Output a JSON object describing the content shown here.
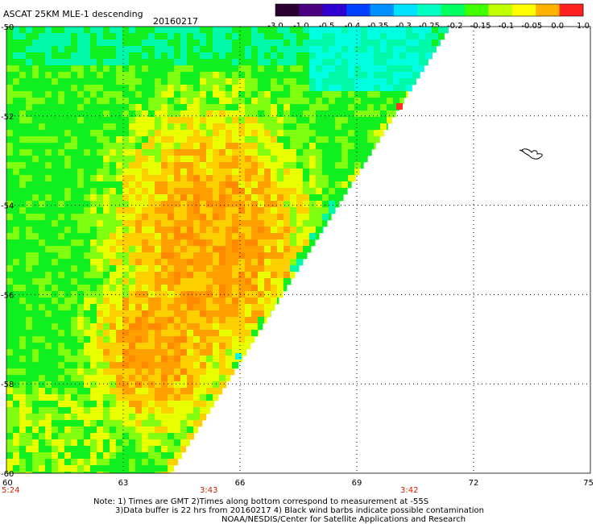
{
  "header": {
    "title": "ASCAT 25KM MLE-1 descending",
    "date": "20160217"
  },
  "colorbar": {
    "tick_labels": [
      "-3.0",
      "-1.0",
      "-0.5",
      "-0.4",
      "-0.35",
      "-0.3",
      "-0.25",
      "-0.2",
      "-0.15",
      "-0.1",
      "-0.05",
      "0.0",
      "1.0"
    ],
    "colors": [
      "#2a0030",
      "#4a0080",
      "#3000d0",
      "#0040ff",
      "#0090ff",
      "#00e0ff",
      "#00ffc0",
      "#00ff60",
      "#40ff00",
      "#c0ff00",
      "#ffff00",
      "#ffb000",
      "#ff2020"
    ]
  },
  "map": {
    "lon_ticks": [
      "60",
      "63",
      "66",
      "69",
      "72",
      "75"
    ],
    "lat_ticks": [
      "-50",
      "-52",
      "-54",
      "-56",
      "-58",
      "-60"
    ],
    "time_labels": [
      "5:24",
      "3:43",
      "3:42"
    ],
    "time_color": "#d02000",
    "palette": {
      "cyan": "#00ffe0",
      "teal": "#00f8a8",
      "green": "#10f020",
      "lime": "#80ff10",
      "yellow": "#e8ff00",
      "gold": "#ffd000",
      "orange": "#ffa000",
      "deep_orange": "#ff8a00",
      "red": "#ff3020"
    }
  },
  "notes": {
    "line1": "Note: 1) Times are GMT 2)Times along bottom correspond to measurement at -55S",
    "line2": "3)Data buffer is 22 hrs from 20160217 4) Black wind barbs indicate possible contamination",
    "line3": "NOAA/NESDIS/Center for Satellite Applications and Research"
  }
}
